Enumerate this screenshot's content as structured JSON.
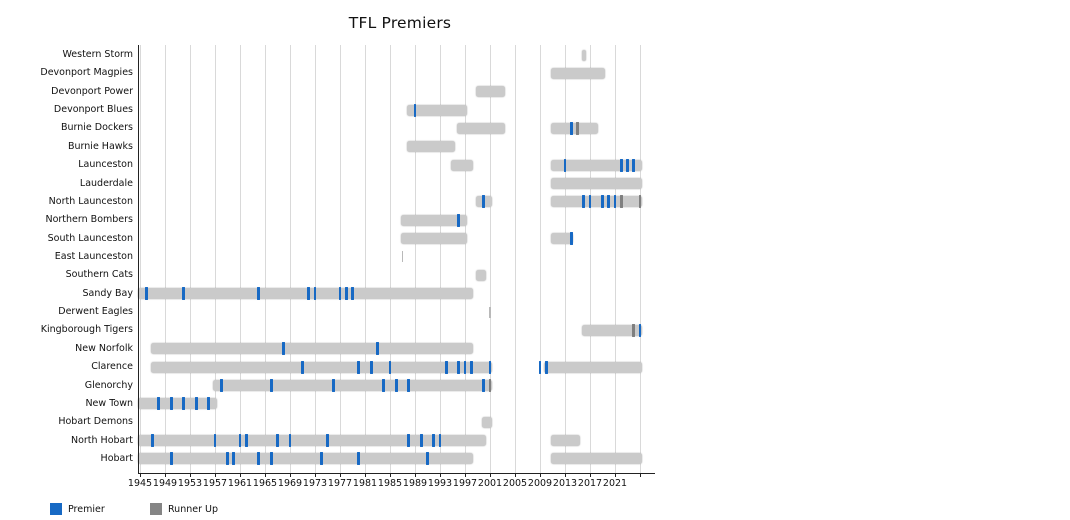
{
  "title": "TFL Premiers",
  "legend": {
    "premier": {
      "label": "Premier",
      "color": "#1769c4"
    },
    "runner_up": {
      "label": "Runner Up",
      "color": "#858585"
    }
  },
  "colors": {
    "span_bar": "#cacaca",
    "premier_tick": "#1769c4",
    "runner_up_tick": "#7f7f7f",
    "gridline": "#d9d9d9",
    "axis": "#222222"
  },
  "chart_data": {
    "type": "timeline",
    "title": "TFL Premiers",
    "x_axis": {
      "min": 1944,
      "max": 2026,
      "tick_labels": [
        1945,
        1949,
        1953,
        1957,
        1961,
        1965,
        1969,
        1973,
        1977,
        1981,
        1985,
        1989,
        1993,
        1997,
        2001,
        2005,
        2009,
        2013,
        2017,
        2021
      ],
      "grid_years": [
        1945,
        1949,
        1953,
        1957,
        1961,
        1965,
        1969,
        1973,
        1977,
        1981,
        1985,
        1989,
        1993,
        1997,
        2001,
        2005,
        2009,
        2013,
        2017,
        2021,
        2025
      ],
      "grid": true
    },
    "legend_position": "bottom-left",
    "teams": [
      {
        "name": "Western Storm",
        "spans": [
          [
            2016,
            2016
          ]
        ],
        "premiers": [],
        "runners_up": [],
        "thin_marks": []
      },
      {
        "name": "Devonport Magpies",
        "spans": [
          [
            2011,
            2019
          ]
        ],
        "premiers": [],
        "runners_up": [],
        "thin_marks": []
      },
      {
        "name": "Devonport Power",
        "spans": [
          [
            1999,
            2003
          ]
        ],
        "premiers": [],
        "runners_up": [],
        "thin_marks": []
      },
      {
        "name": "Devonport Blues",
        "spans": [
          [
            1988,
            1997
          ]
        ],
        "premiers": [
          1989
        ],
        "runners_up": [],
        "thin_marks": []
      },
      {
        "name": "Burnie Dockers",
        "spans": [
          [
            1996,
            2003
          ],
          [
            2011,
            2018
          ]
        ],
        "premiers": [
          2014
        ],
        "runners_up": [
          2015
        ],
        "thin_marks": []
      },
      {
        "name": "Burnie Hawks",
        "spans": [
          [
            1988,
            1995
          ]
        ],
        "premiers": [],
        "runners_up": [],
        "thin_marks": []
      },
      {
        "name": "Launceston",
        "spans": [
          [
            1995,
            1998
          ],
          [
            2011,
            2025
          ]
        ],
        "premiers": [
          2013,
          2022,
          2023,
          2024
        ],
        "runners_up": [],
        "thin_marks": []
      },
      {
        "name": "Lauderdale",
        "spans": [
          [
            2011,
            2025
          ]
        ],
        "premiers": [],
        "runners_up": [],
        "thin_marks": []
      },
      {
        "name": "North Launceston",
        "spans": [
          [
            1999,
            2001
          ],
          [
            2011,
            2025
          ]
        ],
        "premiers": [
          2000,
          2016,
          2017,
          2019,
          2020,
          2021
        ],
        "runners_up": [
          2022,
          2025
        ],
        "thin_marks": []
      },
      {
        "name": "Northern Bombers",
        "spans": [
          [
            1987,
            1997
          ]
        ],
        "premiers": [
          1996
        ],
        "runners_up": [],
        "thin_marks": []
      },
      {
        "name": "South Launceston",
        "spans": [
          [
            1987,
            1997
          ],
          [
            2011,
            2014
          ]
        ],
        "premiers": [
          2014
        ],
        "runners_up": [],
        "thin_marks": []
      },
      {
        "name": "East Launceston",
        "spans": [],
        "premiers": [],
        "runners_up": [],
        "thin_marks": [
          1987
        ]
      },
      {
        "name": "Southern Cats",
        "spans": [
          [
            1999,
            2000
          ]
        ],
        "premiers": [],
        "runners_up": [],
        "thin_marks": []
      },
      {
        "name": "Sandy Bay",
        "spans": [
          [
            1945,
            1998
          ]
        ],
        "premiers": [
          1946,
          1952,
          1964,
          1972,
          1973,
          1977,
          1978,
          1979
        ],
        "runners_up": [],
        "thin_marks": []
      },
      {
        "name": "Derwent Eagles",
        "spans": [],
        "premiers": [],
        "runners_up": [],
        "thin_marks": [
          2001
        ]
      },
      {
        "name": "Kingborough Tigers",
        "spans": [
          [
            2016,
            2025
          ]
        ],
        "premiers": [
          2025
        ],
        "runners_up": [
          2024
        ],
        "thin_marks": []
      },
      {
        "name": "New Norfolk",
        "spans": [
          [
            1947,
            1998
          ]
        ],
        "premiers": [
          1968,
          1983
        ],
        "runners_up": [],
        "thin_marks": []
      },
      {
        "name": "Clarence",
        "spans": [
          [
            1947,
            2001
          ],
          [
            2010,
            2025
          ]
        ],
        "premiers": [
          1971,
          1980,
          1982,
          1985,
          1994,
          1996,
          1997,
          1998,
          2001,
          2009,
          2010
        ],
        "runners_up": [],
        "thin_marks": []
      },
      {
        "name": "Glenorchy",
        "spans": [
          [
            1957,
            2001
          ]
        ],
        "premiers": [
          1958,
          1966,
          1976,
          1984,
          1986,
          1988,
          2000
        ],
        "runners_up": [
          2001
        ],
        "thin_marks": []
      },
      {
        "name": "New Town",
        "spans": [
          [
            1945,
            1957
          ]
        ],
        "premiers": [
          1948,
          1950,
          1952,
          1954,
          1956
        ],
        "runners_up": [],
        "thin_marks": []
      },
      {
        "name": "Hobart Demons",
        "spans": [
          [
            2000,
            2001
          ]
        ],
        "premiers": [],
        "runners_up": [],
        "thin_marks": []
      },
      {
        "name": "North Hobart",
        "spans": [
          [
            1945,
            2000
          ],
          [
            2011,
            2015
          ]
        ],
        "premiers": [
          1947,
          1957,
          1961,
          1962,
          1967,
          1969,
          1975,
          1988,
          1990,
          1992,
          1993
        ],
        "runners_up": [],
        "thin_marks": []
      },
      {
        "name": "Hobart",
        "spans": [
          [
            1945,
            1998
          ],
          [
            2011,
            2025
          ]
        ],
        "premiers": [
          1950,
          1959,
          1960,
          1964,
          1966,
          1974,
          1980,
          1991
        ],
        "runners_up": [],
        "thin_marks": []
      }
    ]
  }
}
